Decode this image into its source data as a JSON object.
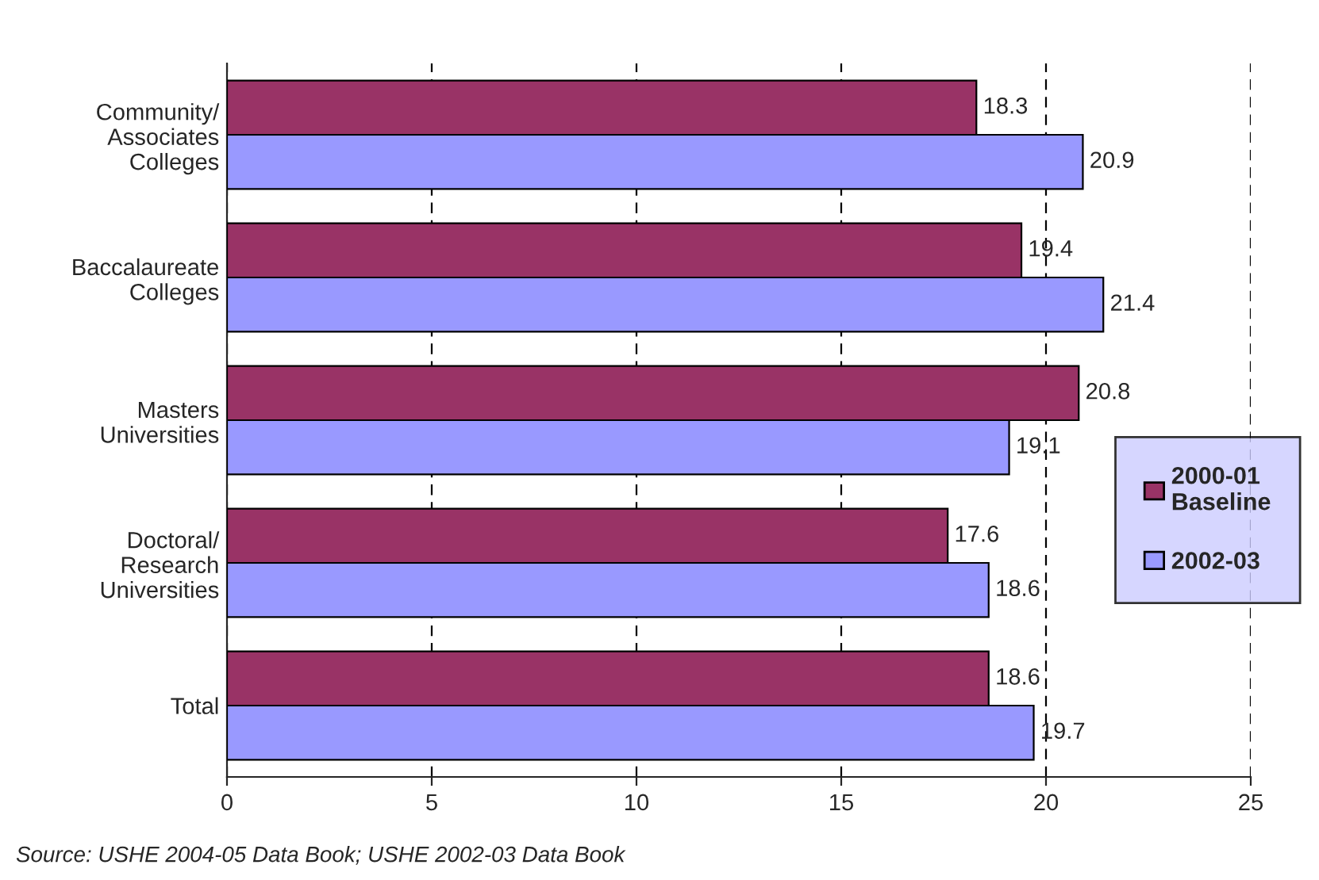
{
  "chart_data": {
    "type": "bar",
    "orientation": "horizontal",
    "categories": [
      "Community/\nAssociates\nColleges",
      "Baccalaureate\nColleges",
      "Masters\nUniversities",
      "Doctoral/\nResearch\nUniversities",
      "Total"
    ],
    "series": [
      {
        "name": "2000-01\nBaseline",
        "color": "#993366",
        "values": [
          18.3,
          19.4,
          20.8,
          17.6,
          18.6
        ]
      },
      {
        "name": "2002-03",
        "color": "#9999ff",
        "values": [
          20.9,
          21.4,
          19.1,
          18.6,
          19.7
        ]
      }
    ],
    "xlim": [
      0,
      25
    ],
    "xticks": [
      0,
      5,
      10,
      15,
      20,
      25
    ],
    "grid": "x",
    "legend": "right",
    "data_labels": true,
    "annotations": [
      "Source: USHE 2004-05 Data Book; USHE 2002-03 Data Book"
    ]
  }
}
